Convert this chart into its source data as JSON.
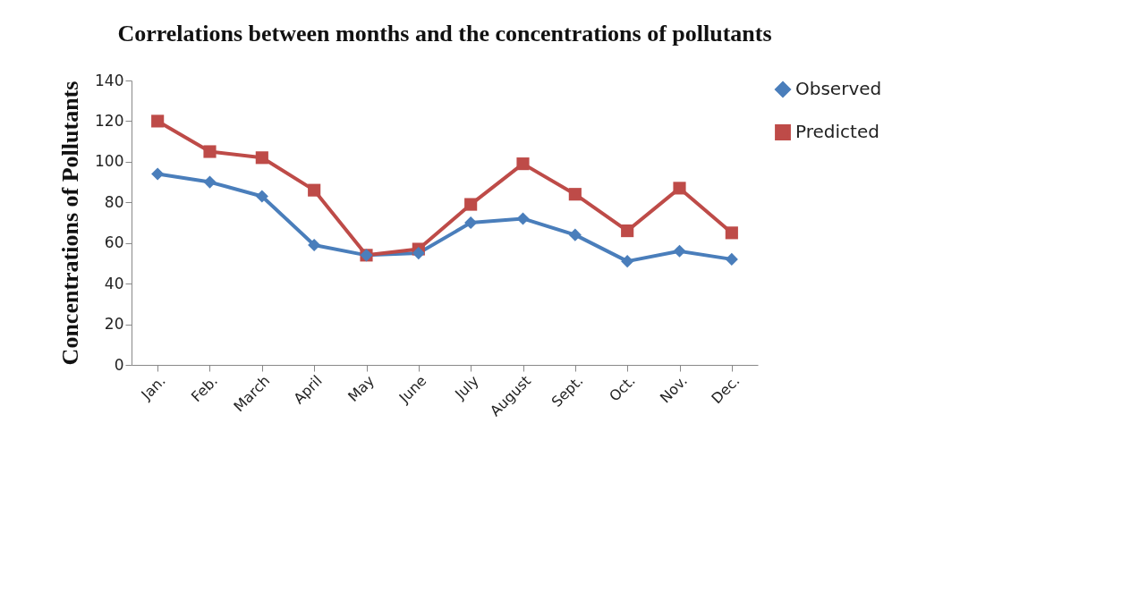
{
  "chart_data": {
    "type": "line",
    "title": "Correlations between months and the concentrations of pollutants",
    "ylabel": "Concentrations of Pollutants",
    "categories": [
      "Jan.",
      "Feb.",
      "March",
      "April",
      "May",
      "June",
      "July",
      "August",
      "Sept.",
      "Oct.",
      "Nov.",
      "Dec."
    ],
    "series": [
      {
        "name": "Observed",
        "color": "#4a7ebb",
        "marker": "diamond",
        "values": [
          94,
          90,
          83,
          59,
          54,
          55,
          70,
          72,
          64,
          51,
          56,
          52
        ]
      },
      {
        "name": "Predicted",
        "color": "#be4b48",
        "marker": "square",
        "values": [
          120,
          105,
          102,
          86,
          54,
          57,
          79,
          99,
          84,
          66,
          87,
          65
        ]
      }
    ],
    "ylim": [
      0,
      140
    ],
    "yticks": [
      0,
      20,
      40,
      60,
      80,
      100,
      120,
      140
    ],
    "grid": false,
    "legend": "right"
  }
}
